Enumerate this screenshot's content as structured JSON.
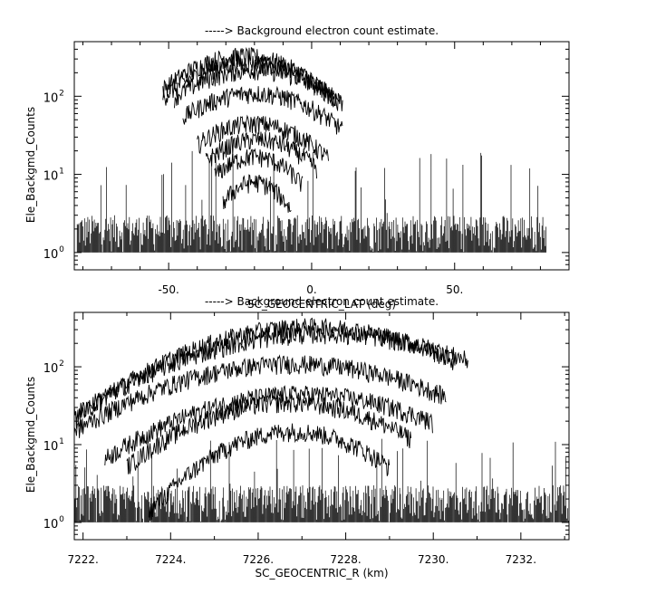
{
  "chart_data": [
    {
      "type": "line",
      "title": "-----> Background electron count estimate.",
      "xlabel": "SC_GEOCENTRIC_LAT (deg)",
      "ylabel": "Ele_Backgmd_Counts",
      "xlim": [
        -83,
        90
      ],
      "ylim": [
        0.6,
        500
      ],
      "yscale": "log",
      "grid": false,
      "x_ticks": [
        -50,
        0,
        50
      ],
      "x_tick_labels": [
        "-50.",
        "0.",
        "50."
      ],
      "y_ticks": [
        1,
        10,
        100
      ],
      "y_tick_labels": [
        "10",
        "10",
        "10"
      ],
      "y_tick_exponents": [
        "0",
        "1",
        "2"
      ],
      "noise": {
        "x_range": [
          -82,
          82
        ],
        "floor_max": 3,
        "spike_max": 20
      },
      "series": [
        {
          "peak_x": -24,
          "peak_y": 330,
          "width": 20,
          "x_range": [
            -52,
            8
          ]
        },
        {
          "peak_x": -22,
          "peak_y": 270,
          "width": 21,
          "x_range": [
            -52,
            10
          ]
        },
        {
          "peak_x": -20,
          "peak_y": 220,
          "width": 22,
          "x_range": [
            -48,
            11
          ]
        },
        {
          "peak_x": -20,
          "peak_y": 110,
          "width": 21,
          "x_range": [
            -45,
            11
          ]
        },
        {
          "peak_x": -20,
          "peak_y": 45,
          "width": 18,
          "x_range": [
            -40,
            6
          ]
        },
        {
          "peak_x": -19,
          "peak_y": 28,
          "width": 16,
          "x_range": [
            -37,
            2
          ]
        },
        {
          "peak_x": -20,
          "peak_y": 17,
          "width": 13,
          "x_range": [
            -34,
            -3
          ]
        },
        {
          "peak_x": -20,
          "peak_y": 8,
          "width": 10,
          "x_range": [
            -31,
            -7
          ]
        }
      ]
    },
    {
      "type": "line",
      "title": "-----> Background electron count estimate.",
      "xlabel": "SC_GEOCENTRIC_R (km)",
      "ylabel": "Ele_Backgmd_Counts",
      "xlim": [
        7221.8,
        7233.1
      ],
      "ylim": [
        0.6,
        500
      ],
      "yscale": "log",
      "grid": false,
      "x_ticks": [
        7222,
        7224,
        7226,
        7228,
        7230,
        7232
      ],
      "x_tick_labels": [
        "7222.",
        "7224.",
        "7226.",
        "7228.",
        "7230.",
        "7232."
      ],
      "y_ticks": [
        1,
        10,
        100
      ],
      "y_tick_labels": [
        "10",
        "10",
        "10"
      ],
      "y_tick_exponents": [
        "0",
        "1",
        "2"
      ],
      "noise": {
        "x_range": [
          7221.8,
          7233.1
        ],
        "floor_max": 3,
        "spike_max": 12
      },
      "series": [
        {
          "peak_x": 7227.2,
          "peak_y": 330,
          "width": 2.3,
          "x_range": [
            7221.8,
            7230.5
          ]
        },
        {
          "peak_x": 7227.5,
          "peak_y": 270,
          "width": 2.6,
          "x_range": [
            7221.8,
            7230.8
          ]
        },
        {
          "peak_x": 7226.8,
          "peak_y": 110,
          "width": 2.5,
          "x_range": [
            7221.8,
            7230.3
          ]
        },
        {
          "peak_x": 7227.0,
          "peak_y": 45,
          "width": 2.3,
          "x_range": [
            7222.5,
            7230.0
          ]
        },
        {
          "peak_x": 7226.7,
          "peak_y": 35,
          "width": 1.9,
          "x_range": [
            7223.0,
            7229.5
          ]
        },
        {
          "peak_x": 7226.8,
          "peak_y": 15,
          "width": 1.5,
          "x_range": [
            7223.5,
            7229.0
          ]
        }
      ]
    }
  ]
}
